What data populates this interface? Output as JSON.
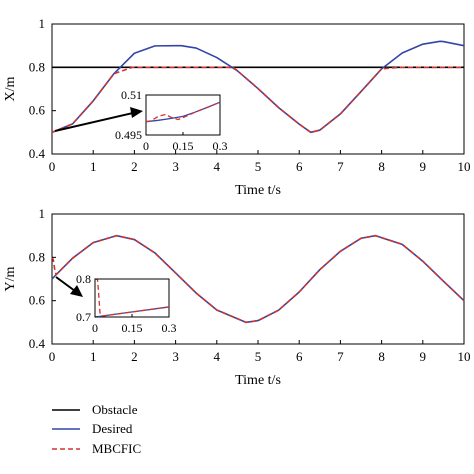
{
  "colors": {
    "obstacle": "#000000",
    "desired": "#3346a8",
    "mbcfic": "#d2332b",
    "axis": "#000000"
  },
  "legend": {
    "obstacle": "Obstacle",
    "desired": "Desired",
    "mbcfic": "MBCFIC"
  },
  "chart_data": [
    {
      "type": "line",
      "id": "x-plot",
      "xlabel": "Time t/s",
      "ylabel": "X/m",
      "xlim": [
        0,
        10
      ],
      "ylim": [
        0.4,
        1.0
      ],
      "xticks": [
        "0",
        "1",
        "2",
        "3",
        "4",
        "5",
        "6",
        "7",
        "8",
        "9",
        "10"
      ],
      "yticks": [
        "0.4",
        "0.6",
        "0.8",
        "1"
      ],
      "grid": false,
      "series": [
        {
          "name": "Obstacle",
          "style": "solid",
          "color_key": "obstacle",
          "x": [
            0,
            10
          ],
          "y": [
            0.8,
            0.8
          ]
        },
        {
          "name": "Desired",
          "style": "solid",
          "color_key": "desired",
          "x": [
            0,
            0.5,
            1.0,
            1.5,
            2.0,
            2.5,
            3.0,
            3.14,
            3.5,
            4.0,
            4.5,
            5.0,
            5.5,
            6.0,
            6.28,
            6.5,
            7.0,
            7.5,
            8.0,
            8.5,
            9.0,
            9.42,
            9.5,
            10
          ],
          "y": [
            0.5,
            0.539,
            0.645,
            0.77,
            0.865,
            0.899,
            0.9,
            0.9,
            0.889,
            0.845,
            0.784,
            0.702,
            0.614,
            0.538,
            0.5,
            0.51,
            0.585,
            0.688,
            0.793,
            0.866,
            0.907,
            0.92,
            0.919,
            0.9
          ]
        },
        {
          "name": "MBCFIC",
          "style": "dashed",
          "color_key": "mbcfic",
          "x": [
            0,
            0.5,
            1.0,
            1.5,
            1.95,
            2.0,
            4.4,
            4.5,
            5.0,
            5.5,
            6.0,
            6.28,
            6.5,
            7.0,
            7.5,
            8.0,
            8.45,
            8.5,
            10
          ],
          "y": [
            0.5,
            0.539,
            0.645,
            0.77,
            0.8,
            0.8,
            0.8,
            0.784,
            0.702,
            0.614,
            0.538,
            0.5,
            0.51,
            0.585,
            0.688,
            0.793,
            0.8,
            0.8,
            0.8
          ]
        }
      ],
      "inset": {
        "xlim": [
          0,
          0.3
        ],
        "ylim": [
          0.495,
          0.51
        ],
        "xticks": [
          "0",
          "0.15",
          "0.3"
        ],
        "yticks": [
          "0.495",
          "0.51"
        ],
        "series": [
          {
            "name": "Desired",
            "color_key": "desired",
            "style": "solid",
            "x": [
              0,
              0.05,
              0.1,
              0.15,
              0.2,
              0.25,
              0.3
            ],
            "y": [
              0.5,
              0.5005,
              0.5012,
              0.502,
              0.5036,
              0.5054,
              0.5073
            ]
          },
          {
            "name": "MBCFIC",
            "color_key": "mbcfic",
            "style": "dashed",
            "x": [
              0,
              0.02,
              0.05,
              0.08,
              0.1,
              0.13,
              0.15,
              0.2,
              0.25,
              0.3
            ],
            "y": [
              0.5,
              0.5003,
              0.502,
              0.5027,
              0.5017,
              0.5008,
              0.5015,
              0.5036,
              0.5054,
              0.5073
            ]
          }
        ]
      }
    },
    {
      "type": "line",
      "id": "y-plot",
      "xlabel": "Time t/s",
      "ylabel": "Y/m",
      "xlim": [
        0,
        10
      ],
      "ylim": [
        0.4,
        1.0
      ],
      "xticks": [
        "0",
        "1",
        "2",
        "3",
        "4",
        "5",
        "6",
        "7",
        "8",
        "9",
        "10"
      ],
      "yticks": [
        "0.4",
        "0.6",
        "0.8",
        "1"
      ],
      "grid": false,
      "series": [
        {
          "name": "Desired",
          "style": "solid",
          "color_key": "desired",
          "x": [
            0,
            0.1,
            0.5,
            1.0,
            1.57,
            2.0,
            2.5,
            3.0,
            3.5,
            4.0,
            4.71,
            5.0,
            5.5,
            6.0,
            6.5,
            7.0,
            7.5,
            7.85,
            8.5,
            9.0,
            9.5,
            10
          ],
          "y": [
            0.7,
            0.72,
            0.796,
            0.868,
            0.9,
            0.882,
            0.82,
            0.728,
            0.635,
            0.557,
            0.5,
            0.508,
            0.556,
            0.64,
            0.743,
            0.828,
            0.888,
            0.9,
            0.86,
            0.782,
            0.69,
            0.6
          ]
        },
        {
          "name": "MBCFIC",
          "style": "dashed",
          "color_key": "mbcfic",
          "x": [
            0,
            0.03,
            0.07,
            0.1,
            0.5,
            1.0,
            1.57,
            2.0,
            2.5,
            3.0,
            3.5,
            4.0,
            4.71,
            5.0,
            5.5,
            6.0,
            6.5,
            7.0,
            7.5,
            7.85,
            8.5,
            9.0,
            9.5,
            10
          ],
          "y": [
            0.8,
            0.79,
            0.74,
            0.72,
            0.796,
            0.868,
            0.9,
            0.882,
            0.82,
            0.728,
            0.635,
            0.557,
            0.5,
            0.508,
            0.556,
            0.64,
            0.743,
            0.828,
            0.888,
            0.9,
            0.86,
            0.782,
            0.69,
            0.6
          ]
        }
      ],
      "inset": {
        "xlim": [
          0,
          0.3
        ],
        "ylim": [
          0.7,
          0.8
        ],
        "xticks": [
          "0",
          "0.15",
          "0.3"
        ],
        "yticks": [
          "0.7",
          "0.8"
        ],
        "series": [
          {
            "name": "Desired",
            "color_key": "desired",
            "style": "solid",
            "x": [
              0,
              0.3
            ],
            "y": [
              0.7,
              0.7265
            ]
          },
          {
            "name": "MBCFIC",
            "color_key": "mbcfic",
            "style": "dashed",
            "x": [
              0,
              0.01,
              0.015,
              0.02,
              0.025,
              0.03,
              0.3
            ],
            "y": [
              0.8,
              0.799,
              0.76,
              0.712,
              0.703,
              0.7026,
              0.7265
            ]
          }
        ]
      }
    }
  ]
}
